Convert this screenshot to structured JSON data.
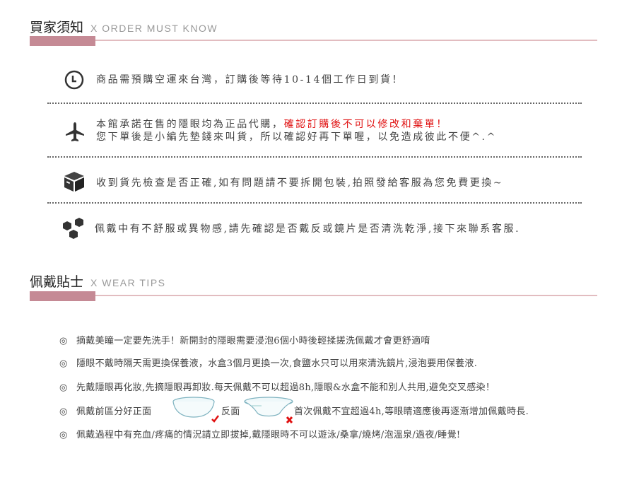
{
  "section1": {
    "title": "買家須知",
    "subtitle": "X  ORDER MUST KNOW",
    "items": [
      {
        "icon": "clock-icon",
        "text": "商品需預購空運來台灣，訂購後等待10-14個工作日到貨！"
      },
      {
        "icon": "airplane-icon",
        "text": "本館承諾在售的隱眼均為正品代購，",
        "highlight": "確認訂購後不可以修改和棄單！",
        "line2": "您下單後是小編先墊錢來叫貨，所以確認好再下單喔，以免造成彼此不便^.^"
      },
      {
        "icon": "box-icon",
        "text": "收到貨先檢查是否正確,如有問題請不要拆開包裝,拍照發給客服為您免費更換~"
      },
      {
        "icon": "boxes-icon",
        "text": "佩戴中有不舒服或異物感,請先確認是否戴反或鏡片是否清洗乾淨,接下來聯系客服."
      }
    ]
  },
  "section2": {
    "title": "佩戴貼士",
    "subtitle": "X  WEAR TIPS",
    "bullet": "◎",
    "tips": [
      "摘戴美瞳一定要先洗手！新開封的隱眼需要浸泡6個小時後輕揉搓洗佩戴才會更舒適唷",
      "隱眼不戴時隔天需更換保養液，水盒3個月更換一次,食鹽水只可以用來清洗鏡片,浸泡要用保養液.",
      "先戴隱眼再化妝,先摘隱眼再卸妝.每天佩戴不可以超過8h,隱眼&水盒不能和別人共用,避免交叉感染！"
    ],
    "tip4": {
      "part1": "佩戴前區分好正面",
      "part2": "反面",
      "part3": "首次佩戴不宜超過4h,等眼睛適應後再逐漸增加佩戴時長."
    },
    "tip5": "佩戴過程中有充血/疼痛的情況請立即拔掉,戴隱眼時不可以遊泳/桑拿/燒烤/泡溫泉/過夜/睡覺!"
  },
  "colors": {
    "accent": "#c58a95",
    "line": "#e2bcc0",
    "highlight": "#e01010"
  }
}
